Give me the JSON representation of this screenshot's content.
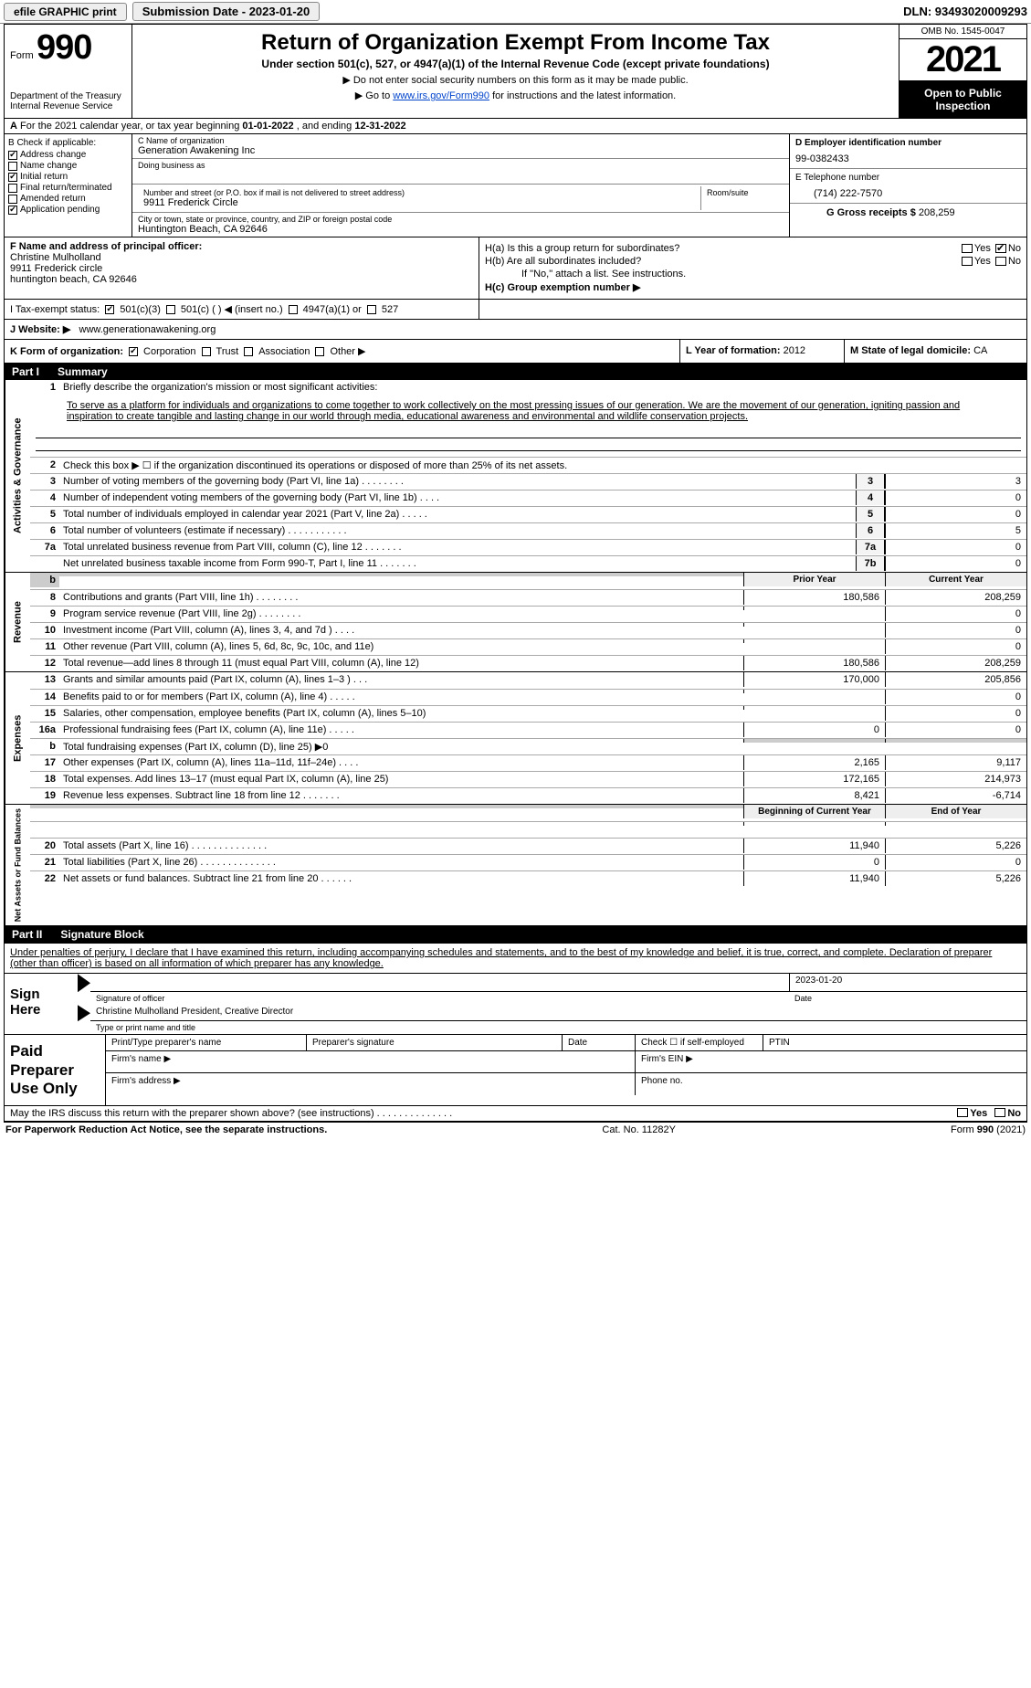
{
  "topbar": {
    "efile_label": "efile GRAPHIC print",
    "submission": "Submission Date - 2023-01-20",
    "dln": "DLN: 93493020009293"
  },
  "header": {
    "form_prefix": "Form",
    "form_number": "990",
    "dept": "Department of the Treasury",
    "irs": "Internal Revenue Service",
    "title": "Return of Organization Exempt From Income Tax",
    "subtitle": "Under section 501(c), 527, or 4947(a)(1) of the Internal Revenue Code (except private foundations)",
    "note1": "▶ Do not enter social security numbers on this form as it may be made public.",
    "note2_pre": "▶ Go to ",
    "note2_link": "www.irs.gov/Form990",
    "note2_post": " for instructions and the latest information.",
    "omb": "OMB No. 1545-0047",
    "year": "2021",
    "open": "Open to Public Inspection"
  },
  "row_a": {
    "prefix_a": "A",
    "text": "For the 2021 calendar year, or tax year beginning ",
    "begin": "01-01-2022",
    "mid": "    , and ending ",
    "end": "12-31-2022"
  },
  "block_b": {
    "label": "B Check if applicable:",
    "items": [
      {
        "label": "Address change",
        "checked": true
      },
      {
        "label": "Name change",
        "checked": false
      },
      {
        "label": "Initial return",
        "checked": true
      },
      {
        "label": "Final return/terminated",
        "checked": false
      },
      {
        "label": "Amended return",
        "checked": false
      },
      {
        "label": "Application pending",
        "checked": true
      }
    ],
    "c_label": "C Name of organization",
    "c_name": "Generation Awakening Inc",
    "dba_label": "Doing business as",
    "dba": "",
    "addr_label": "Number and street (or P.O. box if mail is not delivered to street address)",
    "room_label": "Room/suite",
    "addr": "9911 Frederick Circle",
    "city_label": "City or town, state or province, country, and ZIP or foreign postal code",
    "city": "Huntington Beach, CA  92646",
    "d_label": "D Employer identification number",
    "d_val": "99-0382433",
    "e_label": "E Telephone number",
    "e_val": "(714) 222-7570",
    "g_label": "G Gross receipts $",
    "g_val": "208,259"
  },
  "block_fh": {
    "f_label": "F  Name and address of principal officer:",
    "f_name": "Christine Mulholland",
    "f_addr1": "9911 Frederick circle",
    "f_addr2": "huntington beach, CA  92646",
    "ha_label": "H(a)  Is this a group return for subordinates?",
    "hb_label": "H(b)  Are all subordinates included?",
    "hb_note": "If \"No,\" attach a list. See instructions.",
    "hc_label": "H(c)  Group exemption number ▶",
    "yes": "Yes",
    "no": "No"
  },
  "block_i": {
    "label": "I   Tax-exempt status:",
    "opt1": "501(c)(3)",
    "opt2": "501(c) (   ) ◀ (insert no.)",
    "opt3": "4947(a)(1) or",
    "opt4": "527"
  },
  "row_j": {
    "label": "J   Website: ▶",
    "val": "www.generationawakening.org"
  },
  "block_klm": {
    "k_label": "K Form of organization:",
    "k_corp": "Corporation",
    "k_trust": "Trust",
    "k_assoc": "Association",
    "k_other": "Other ▶",
    "l_label": "L Year of formation:",
    "l_val": "2012",
    "m_label": "M State of legal domicile:",
    "m_val": "CA"
  },
  "part1": {
    "header_num": "Part I",
    "header_title": "Summary",
    "side1": "Activities & Governance",
    "side2": "Revenue",
    "side3": "Expenses",
    "side4": "Net Assets or Fund Balances",
    "line1_label": "Briefly describe the organization's mission or most significant activities:",
    "mission": "To serve as a platform for individuals and organizations to come together to work collectively on the most pressing issues of our generation. We are the movement of our generation, igniting passion and inspiration to create tangible and lasting change in our world through media, educational awareness and environmental and wildlife conservation projects.",
    "line2": "Check this box ▶ ☐  if the organization discontinued its operations or disposed of more than 25% of its net assets.",
    "prior_year": "Prior Year",
    "current_year": "Current Year",
    "begin_year": "Beginning of Current Year",
    "end_year": "End of Year",
    "rows_gov": [
      {
        "n": "3",
        "t": "Number of voting members of the governing body (Part VI, line 1a)   .    .    .    .    .    .    .    .",
        "box": "3",
        "v": "3"
      },
      {
        "n": "4",
        "t": "Number of independent voting members of the governing body (Part VI, line 1b)   .    .    .    .",
        "box": "4",
        "v": "0"
      },
      {
        "n": "5",
        "t": "Total number of individuals employed in calendar year 2021 (Part V, line 2a)   .    .    .    .    .",
        "box": "5",
        "v": "0"
      },
      {
        "n": "6",
        "t": "Total number of volunteers (estimate if necessary)    .    .    .    .    .    .    .    .    .    .    .",
        "box": "6",
        "v": "5"
      },
      {
        "n": "7a",
        "t": "Total unrelated business revenue from Part VIII, column (C), line 12   .    .    .    .    .    .    .",
        "box": "7a",
        "v": "0"
      },
      {
        "n": "",
        "t": "Net unrelated business taxable income from Form 990-T, Part I, line 11   .    .    .    .    .    .    .",
        "box": "7b",
        "v": "0"
      }
    ],
    "rows_rev": [
      {
        "n": "8",
        "t": "Contributions and grants (Part VIII, line 1h)   .    .    .    .    .    .    .    .",
        "p": "180,586",
        "c": "208,259"
      },
      {
        "n": "9",
        "t": "Program service revenue (Part VIII, line 2g)   .    .    .    .    .    .    .    .",
        "p": "",
        "c": "0"
      },
      {
        "n": "10",
        "t": "Investment income (Part VIII, column (A), lines 3, 4, and 7d )   .    .    .    .",
        "p": "",
        "c": "0"
      },
      {
        "n": "11",
        "t": "Other revenue (Part VIII, column (A), lines 5, 6d, 8c, 9c, 10c, and 11e)",
        "p": "",
        "c": "0"
      },
      {
        "n": "12",
        "t": "Total revenue—add lines 8 through 11 (must equal Part VIII, column (A), line 12)",
        "p": "180,586",
        "c": "208,259"
      }
    ],
    "rows_exp": [
      {
        "n": "13",
        "t": "Grants and similar amounts paid (Part IX, column (A), lines 1–3 )   .    .    .",
        "p": "170,000",
        "c": "205,856"
      },
      {
        "n": "14",
        "t": "Benefits paid to or for members (Part IX, column (A), line 4)   .    .    .    .    .",
        "p": "",
        "c": "0"
      },
      {
        "n": "15",
        "t": "Salaries, other compensation, employee benefits (Part IX, column (A), lines 5–10)",
        "p": "",
        "c": "0"
      },
      {
        "n": "16a",
        "t": "Professional fundraising fees (Part IX, column (A), line 11e)   .    .    .    .    .",
        "p": "0",
        "c": "0"
      },
      {
        "n": "b",
        "t": "Total fundraising expenses (Part IX, column (D), line 25) ▶0",
        "p": "gray",
        "c": "gray"
      },
      {
        "n": "17",
        "t": "Other expenses (Part IX, column (A), lines 11a–11d, 11f–24e)   .    .    .     .",
        "p": "2,165",
        "c": "9,117"
      },
      {
        "n": "18",
        "t": "Total expenses. Add lines 13–17 (must equal Part IX, column (A), line 25)",
        "p": "172,165",
        "c": "214,973"
      },
      {
        "n": "19",
        "t": "Revenue less expenses. Subtract line 18 from line 12   .    .    .    .    .    .    .",
        "p": "8,421",
        "c": "-6,714"
      }
    ],
    "rows_net": [
      {
        "n": "20",
        "t": "Total assets (Part X, line 16)   .    .    .    .    .    .    .    .    .    .    .    .    .    .",
        "p": "11,940",
        "c": "5,226"
      },
      {
        "n": "21",
        "t": "Total liabilities (Part X, line 26)   .    .    .    .    .    .    .    .    .    .    .    .    .    .",
        "p": "0",
        "c": "0"
      },
      {
        "n": "22",
        "t": "Net assets or fund balances. Subtract line 21 from line 20   .    .    .    .    .    .",
        "p": "11,940",
        "c": "5,226"
      }
    ]
  },
  "part2": {
    "header_num": "Part II",
    "header_title": "Signature Block",
    "penalty": "Under penalties of perjury, I declare that I have examined this return, including accompanying schedules and statements, and to the best of my knowledge and belief, it is true, correct, and complete. Declaration of preparer (other than officer) is based on all information of which preparer has any knowledge.",
    "sign_here": "Sign Here",
    "sig_officer": "Signature of officer",
    "sig_date": "2023-01-20",
    "sig_date_label": "Date",
    "sig_name": "Christine Mulholland  President, Creative Director",
    "sig_type": "Type or print name and title",
    "paid_label": "Paid Preparer Use Only",
    "prep_name": "Print/Type preparer's name",
    "prep_sig": "Preparer's signature",
    "prep_date": "Date",
    "prep_check": "Check ☐  if self-employed",
    "prep_ptin": "PTIN",
    "firm_name": "Firm's name    ▶",
    "firm_ein": "Firm's EIN ▶",
    "firm_addr": "Firm's address ▶",
    "firm_phone": "Phone no.",
    "discuss": "May the IRS discuss this return with the preparer shown above? (see instructions)    .    .    .    .    .    .    .    .    .    .    .    .    .    .",
    "discuss_yes": "Yes",
    "discuss_no": "No"
  },
  "footer": {
    "left": "For Paperwork Reduction Act Notice, see the separate instructions.",
    "center": "Cat. No. 11282Y",
    "right": "Form 990 (2021)"
  },
  "colors": {
    "black": "#000000",
    "white": "#ffffff",
    "link": "#0044cc",
    "gray_cell": "#cccccc",
    "light_gray": "#eeeeee"
  }
}
